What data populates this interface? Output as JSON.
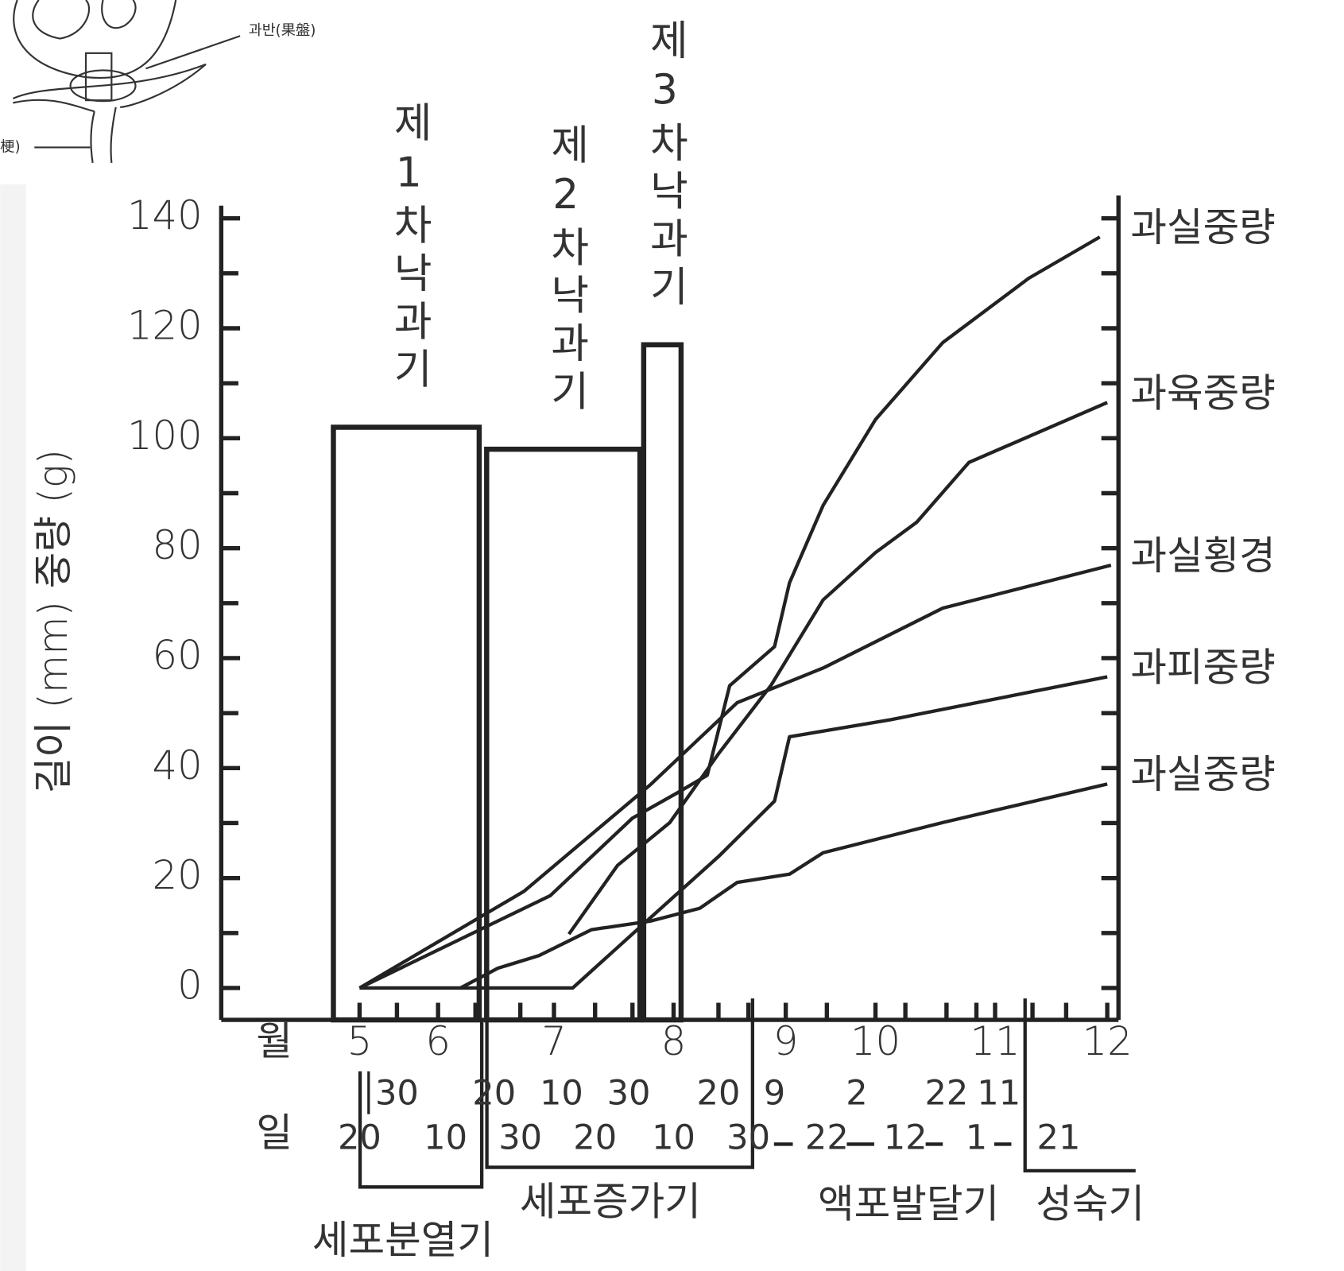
{
  "chart_data": {
    "type": "line",
    "y_axis_label": "길이 (mm) 중량 (g)",
    "ylim": [
      -5.8,
      142.3
    ],
    "yticks": [
      0,
      20,
      40,
      60,
      80,
      100,
      120,
      140
    ],
    "y_minor_ticks": [
      10,
      30,
      50,
      70,
      90,
      110,
      130
    ],
    "xlim": [
      0,
      24
    ],
    "xticks": [
      {
        "value": 3.7,
        "label": "5"
      },
      {
        "value": 5.8,
        "label": "6"
      },
      {
        "value": 8.9,
        "label": "7"
      },
      {
        "value": 12.1,
        "label": "8"
      },
      {
        "value": 15.1,
        "label": "9"
      },
      {
        "value": 17.5,
        "label": "10"
      },
      {
        "value": 20.7,
        "label": "11"
      },
      {
        "value": 23.7,
        "label": "12"
      }
    ],
    "x_minor_ticks": [
      3.7,
      4.7,
      5.8,
      6.8,
      8.0,
      8.9,
      10.0,
      11.0,
      12.1,
      13.3,
      14.1,
      15.1,
      16.2,
      17.5,
      18.3,
      19.4,
      20.2,
      20.7,
      21.7,
      22.6,
      23.7
    ],
    "month_row_label": "월",
    "day_row_label": "일",
    "day_ticks_upper": [
      {
        "value": 4.7,
        "label": "30"
      },
      {
        "value": 7.3,
        "label": "20"
      },
      {
        "value": 9.1,
        "label": "10"
      },
      {
        "value": 10.9,
        "label": "30"
      },
      {
        "value": 13.3,
        "label": "20"
      },
      {
        "value": 14.8,
        "label": "9"
      },
      {
        "value": 17.0,
        "label": "2"
      },
      {
        "value": 19.4,
        "label": "22"
      },
      {
        "value": 20.8,
        "label": "11"
      }
    ],
    "day_ticks_lower": [
      {
        "value": 3.7,
        "label": "20"
      },
      {
        "value": 6.0,
        "label": "10"
      },
      {
        "value": 8.0,
        "label": "30"
      },
      {
        "value": 10.0,
        "label": "20"
      },
      {
        "value": 12.1,
        "label": "10"
      },
      {
        "value": 14.1,
        "label": "30"
      },
      {
        "value": 16.2,
        "label": "22"
      },
      {
        "value": 18.3,
        "label": "12"
      },
      {
        "value": 20.2,
        "label": "1"
      },
      {
        "value": 22.4,
        "label": "21"
      }
    ],
    "bars": [
      {
        "label": "제1차낙과기",
        "value": 102,
        "x": [
          3.0,
          6.9
        ]
      },
      {
        "label": "제2차낙과기",
        "value": 98,
        "x": [
          7.1,
          11.2
        ]
      },
      {
        "label": "제3차낙과기",
        "value": 117,
        "x": [
          11.3,
          12.3
        ]
      }
    ],
    "series": [
      {
        "name": "과실중량",
        "color": "#222",
        "x": [
          3.7,
          8.8,
          11.0,
          12.2,
          13.0,
          13.6,
          14.8,
          15.2,
          16.1,
          17.5,
          19.3,
          21.6,
          23.5
        ],
        "values": [
          0,
          16.8,
          30.9,
          35.5,
          38.7,
          55.0,
          62.1,
          73.7,
          87.8,
          103.4,
          117.4,
          129.1,
          136.6
        ]
      },
      {
        "name": "과육중량",
        "color": "#222",
        "x": [
          9.3,
          10.6,
          12.0,
          13.3,
          14.7,
          16.1,
          17.5,
          18.6,
          20.0,
          23.7
        ],
        "values": [
          9.8,
          22.3,
          30.1,
          42.6,
          55.0,
          70.6,
          79.2,
          84.7,
          95.6,
          106.5
        ]
      },
      {
        "name": "과실횡경",
        "color": "#222",
        "x": [
          3.7,
          8.1,
          11.5,
          13.8,
          16.1,
          19.3,
          23.8
        ],
        "values": [
          0,
          17.6,
          37.1,
          51.9,
          58.2,
          69.1,
          76.9
        ]
      },
      {
        "name": "과피중량",
        "color": "#222",
        "x": [
          3.7,
          9.4,
          11.5,
          13.3,
          14.8,
          15.2,
          17.9,
          23.7
        ],
        "values": [
          0,
          0,
          12.9,
          23.9,
          34.0,
          45.7,
          48.8,
          56.6
        ]
      },
      {
        "name": "과실중량",
        "color": "#222",
        "x": [
          6.4,
          7.4,
          8.5,
          9.9,
          11.5,
          12.8,
          13.8,
          15.2,
          16.1,
          19.3,
          23.7
        ],
        "values": [
          0,
          3.6,
          5.9,
          10.6,
          12.2,
          14.5,
          19.2,
          20.7,
          24.6,
          30.1,
          37.1
        ]
      }
    ],
    "phases": [
      "세포분열기",
      "세포증가기",
      "액포발달기",
      "성숙기"
    ],
    "inset_labels": [
      "과반(果盤)",
      "梗)"
    ]
  }
}
